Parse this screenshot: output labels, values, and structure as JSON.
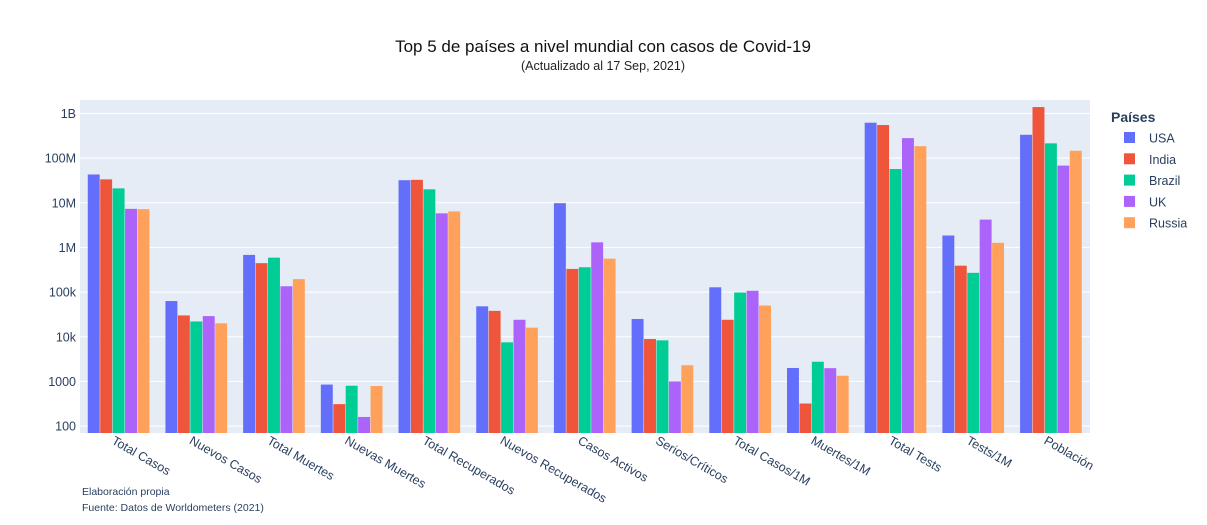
{
  "chart_data": {
    "type": "bar",
    "title": "Top 5 de países a nivel mundial con casos de Covid-19",
    "subtitle": "(Actualizado al 17 Sep, 2021)",
    "y_scale": "log",
    "ylim": [
      70,
      2000000000
    ],
    "y_ticks": [
      {
        "value": 100,
        "label": "100"
      },
      {
        "value": 1000,
        "label": "1000"
      },
      {
        "value": 10000,
        "label": "10k"
      },
      {
        "value": 100000,
        "label": "100k"
      },
      {
        "value": 1000000,
        "label": "1M"
      },
      {
        "value": 10000000,
        "label": "10M"
      },
      {
        "value": 100000000,
        "label": "100M"
      },
      {
        "value": 1000000000,
        "label": "1B"
      }
    ],
    "categories": [
      "Total Casos",
      "Nuevos Casos",
      "Total Muertes",
      "Nuevas Muertes",
      "Total Recuperados",
      "Nuevos Recuperados",
      "Casos Activos",
      "Serios/Críticos",
      "Total Casos/1M",
      "Muertes/1M",
      "Total Tests",
      "Tests/1M",
      "Población"
    ],
    "legend_title": "Países",
    "series": [
      {
        "name": "USA",
        "color": "#636efa",
        "values": [
          43000000,
          63000,
          680000,
          850,
          32000000,
          48000,
          9800000,
          25000,
          128000,
          2000,
          620000000,
          1850000,
          333000000
        ]
      },
      {
        "name": "India",
        "color": "#ef553b",
        "values": [
          33400000,
          30000,
          445000,
          310,
          32600000,
          38000,
          330000,
          8900,
          24000,
          320,
          550000000,
          390000,
          1390000000
        ]
      },
      {
        "name": "Brazil",
        "color": "#00cc96",
        "values": [
          21000000,
          22000,
          590000,
          800,
          20000000,
          7500,
          360000,
          8300,
          98000,
          2760,
          57000000,
          270000,
          214000000
        ]
      },
      {
        "name": "UK",
        "color": "#ab63fa",
        "values": [
          7300000,
          29000,
          135000,
          160,
          5800000,
          24000,
          1300000,
          1000,
          107000,
          1980,
          280000000,
          4200000,
          68000000
        ]
      },
      {
        "name": "Russia",
        "color": "#ffa15a",
        "values": [
          7200000,
          20000,
          195000,
          790,
          6400000,
          16000,
          560000,
          2300,
          50000,
          1340,
          185000000,
          1270000,
          146000000
        ]
      }
    ],
    "legend_position": "right"
  },
  "notes": [
    "Elaboración propia",
    "Fuente: Datos de Worldometers (2021)"
  ]
}
